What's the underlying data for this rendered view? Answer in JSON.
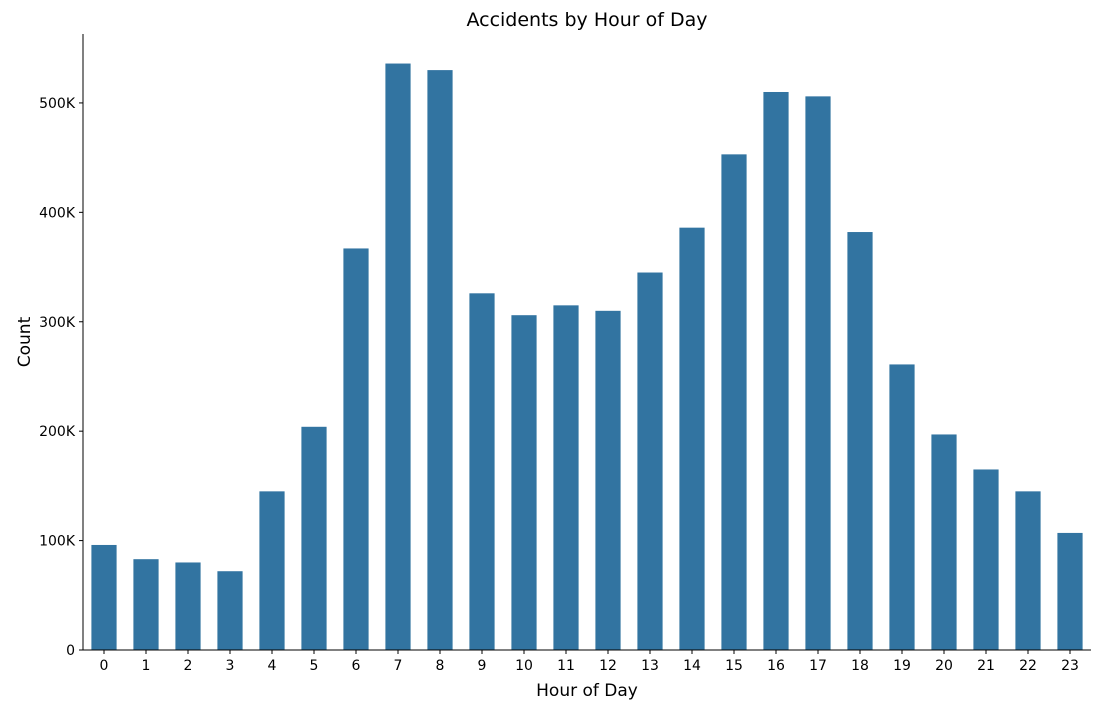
{
  "chart_data": {
    "type": "bar",
    "title": "Accidents by Hour of Day",
    "xlabel": "Hour of Day",
    "ylabel": "Count",
    "categories": [
      "0",
      "1",
      "2",
      "3",
      "4",
      "5",
      "6",
      "7",
      "8",
      "9",
      "10",
      "11",
      "12",
      "13",
      "14",
      "15",
      "16",
      "17",
      "18",
      "19",
      "20",
      "21",
      "22",
      "23"
    ],
    "values": [
      96000,
      83000,
      80000,
      72000,
      145000,
      204000,
      367000,
      536000,
      530000,
      326000,
      306000,
      315000,
      310000,
      345000,
      386000,
      453000,
      510000,
      506000,
      382000,
      261000,
      197000,
      165000,
      145000,
      107000
    ],
    "ylim": [
      0,
      563000
    ],
    "yticks": [
      0,
      100000,
      200000,
      300000,
      400000,
      500000
    ],
    "ytick_labels": [
      "0",
      "100K",
      "200K",
      "300K",
      "400K",
      "500K"
    ],
    "bar_color": "#3274a1",
    "grid": false,
    "legend": false
  }
}
